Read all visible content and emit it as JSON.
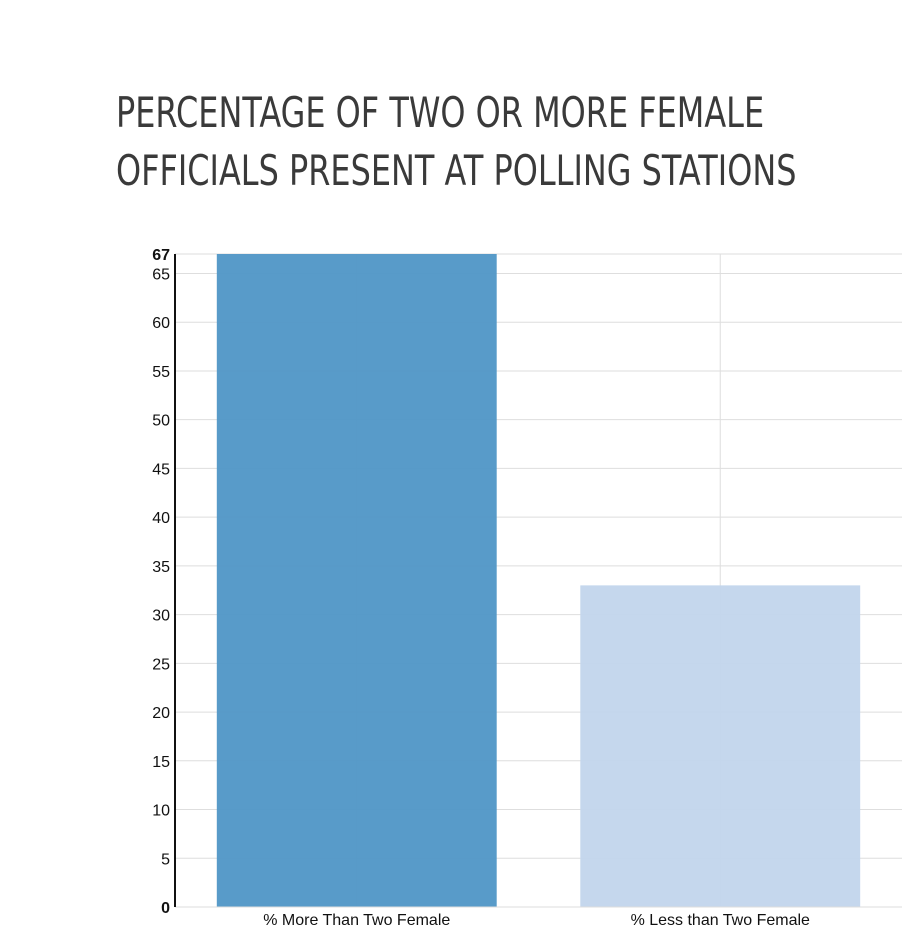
{
  "chart_data": {
    "type": "bar",
    "title_lines": [
      "PERCENTAGE OF TWO OR MORE FEMALE",
      "OFFICIALS PRESENT AT POLLING STATIONS"
    ],
    "categories": [
      "% More Than Two Female",
      "% Less than Two Female"
    ],
    "values": [
      67,
      33
    ],
    "colors": [
      "#4f96c6",
      "#c2d5ec"
    ],
    "ylim": [
      0,
      67
    ],
    "yticks": [
      0,
      5,
      10,
      15,
      20,
      25,
      30,
      35,
      40,
      45,
      50,
      55,
      60,
      65,
      67
    ],
    "bold_ticks": [
      0,
      67
    ],
    "grid": true,
    "xlabel": "",
    "ylabel": ""
  }
}
